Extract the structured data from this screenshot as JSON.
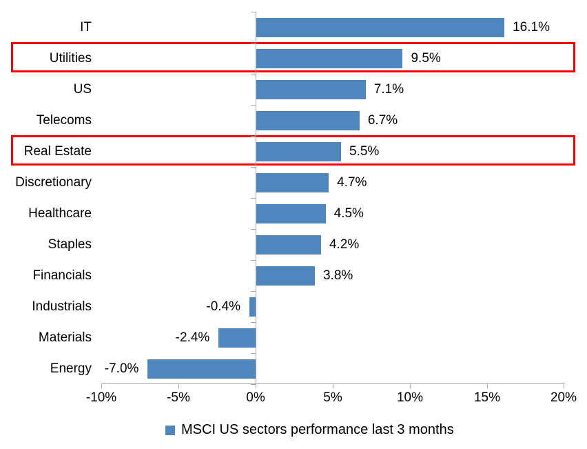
{
  "chart_data": {
    "type": "bar",
    "orientation": "horizontal",
    "title": "",
    "xlabel": "",
    "ylabel": "",
    "categories": [
      "IT",
      "Utilities",
      "US",
      "Telecoms",
      "Real Estate",
      "Discretionary",
      "Healthcare",
      "Staples",
      "Financials",
      "Industrials",
      "Materials",
      "Energy"
    ],
    "values": [
      16.1,
      9.5,
      7.1,
      6.7,
      5.5,
      4.7,
      4.5,
      4.2,
      3.8,
      -0.4,
      -2.4,
      -7.0
    ],
    "value_labels": [
      "16.1%",
      "9.5%",
      "7.1%",
      "6.7%",
      "5.5%",
      "4.7%",
      "4.5%",
      "4.2%",
      "3.8%",
      "-0.4%",
      "-2.4%",
      "-7.0%"
    ],
    "xlim": [
      -10,
      20
    ],
    "x_ticks": [
      -10,
      -5,
      0,
      5,
      10,
      15,
      20
    ],
    "x_tick_labels": [
      "-10%",
      "-5%",
      "0%",
      "5%",
      "10%",
      "15%",
      "20%"
    ],
    "grid": false,
    "legend": "MSCI US sectors performance last 3 months",
    "legend_position": "bottom-center",
    "bar_color": "#4E86BD",
    "axis_color": "#A6A6A6",
    "highlight_box_color": "#FF0000",
    "highlighted_categories": [
      "Utilities",
      "Real Estate"
    ]
  }
}
